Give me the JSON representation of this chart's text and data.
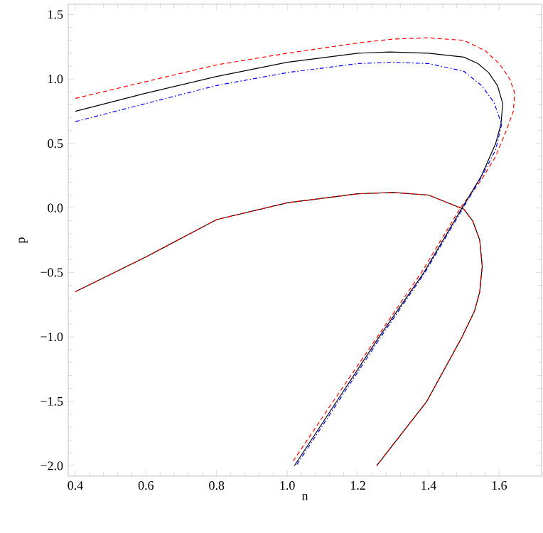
{
  "chart_data": {
    "type": "line",
    "xlabel": "n",
    "ylabel": "p",
    "xlim": [
      0.38,
      1.72
    ],
    "ylim": [
      -2.08,
      1.58
    ],
    "xticks": [
      0.4,
      0.6,
      0.8,
      {
        "value": 1,
        "label": "1.0"
      },
      1.2,
      1.4,
      1.6
    ],
    "yticks": [
      {
        "value": -2,
        "label": "−2.0"
      },
      {
        "value": -1.5,
        "label": "−1.5"
      },
      {
        "value": -1,
        "label": "−1.0"
      },
      {
        "value": -0.5,
        "label": "−0.5"
      },
      {
        "value": 0,
        "label": "0.0"
      },
      0.5,
      {
        "value": 1,
        "label": "1.0"
      },
      1.5
    ],
    "grid": false,
    "marker": "none",
    "series": [
      {
        "color": "#ff0000",
        "line_style": "dashed",
        "x": [
          0.4,
          0.6,
          0.8,
          1.0,
          1.2,
          1.3,
          1.4,
          1.5,
          1.56,
          1.6,
          1.63,
          1.644,
          1.64,
          1.62,
          1.59,
          1.55,
          1.49,
          1.38,
          1.255,
          1.13,
          1.015
        ],
        "values": [
          0.85,
          0.98,
          1.11,
          1.2,
          1.28,
          1.31,
          1.32,
          1.3,
          1.22,
          1.12,
          1.0,
          0.89,
          0.75,
          0.6,
          0.4,
          0.22,
          0.0,
          -0.5,
          -1.0,
          -1.5,
          -1.97
        ]
      },
      {
        "color": "#000000",
        "line_style": "solid",
        "x": [
          0.4,
          0.6,
          0.8,
          1.0,
          1.2,
          1.29,
          1.4,
          1.5,
          1.54,
          1.57,
          1.595,
          1.61,
          1.605,
          1.59,
          1.55,
          1.495,
          1.387,
          1.26,
          1.14,
          1.02
        ],
        "values": [
          0.75,
          0.89,
          1.02,
          1.13,
          1.2,
          1.21,
          1.2,
          1.17,
          1.12,
          1.05,
          0.95,
          0.81,
          0.65,
          0.5,
          0.25,
          0.0,
          -0.5,
          -1.0,
          -1.5,
          -2.0
        ]
      },
      {
        "color": "#0000ff",
        "line_style": "dashdot",
        "x": [
          0.4,
          0.6,
          0.8,
          1.0,
          1.2,
          1.3,
          1.4,
          1.5,
          1.55,
          1.585,
          1.607,
          1.59,
          1.55,
          1.5,
          1.39,
          1.265,
          1.145,
          1.025
        ],
        "values": [
          0.67,
          0.81,
          0.95,
          1.05,
          1.12,
          1.13,
          1.12,
          1.06,
          0.95,
          0.82,
          0.65,
          0.45,
          0.24,
          0.01,
          -0.5,
          -1.0,
          -1.5,
          -2.0
        ]
      },
      {
        "color": "#000000",
        "line_style": "solid",
        "x": [
          0.4,
          0.6,
          0.8,
          1.0,
          1.2,
          1.3,
          1.4,
          1.5,
          1.525,
          1.545,
          1.552,
          1.545,
          1.53,
          1.495,
          1.395,
          1.253
        ],
        "values": [
          -0.65,
          -0.38,
          -0.09,
          0.04,
          0.11,
          0.12,
          0.1,
          -0.01,
          -0.1,
          -0.25,
          -0.45,
          -0.65,
          -0.8,
          -1.0,
          -1.5,
          -2.0
        ]
      },
      {
        "color": "#ff0000",
        "line_style": "dashed",
        "x": [
          0.4,
          0.6,
          0.8,
          1.0,
          1.2,
          1.3,
          1.4,
          1.5,
          1.525,
          1.545,
          1.552,
          1.545,
          1.53,
          1.495,
          1.395,
          1.253
        ],
        "values": [
          -0.65,
          -0.38,
          -0.09,
          0.04,
          0.11,
          0.12,
          0.1,
          -0.01,
          -0.1,
          -0.25,
          -0.45,
          -0.65,
          -0.8,
          -1.0,
          -1.5,
          -2.0
        ]
      }
    ]
  }
}
